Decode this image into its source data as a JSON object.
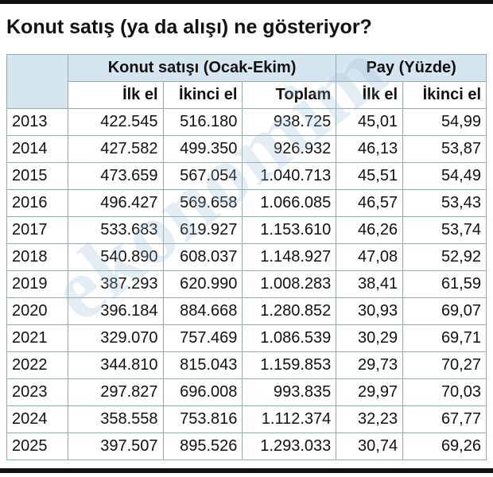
{
  "header": {
    "title": "Konut satış (ya da alışı) ne gösteriyor?"
  },
  "table": {
    "group_headers": [
      "Konut satışı (Ocak-Ekim)",
      "Pay (Yüzde)"
    ],
    "columns": [
      "İlk el",
      "İkinci el",
      "Toplam",
      "İlk el",
      "İkinci el"
    ],
    "rows": [
      [
        "2013",
        "422.545",
        "516.180",
        "938.725",
        "45,01",
        "54,99"
      ],
      [
        "2014",
        "427.582",
        "499.350",
        "926.932",
        "46,13",
        "53,87"
      ],
      [
        "2015",
        "473.659",
        "567.054",
        "1.040.713",
        "45,51",
        "54,49"
      ],
      [
        "2016",
        "496.427",
        "569.658",
        "1.066.085",
        "46,57",
        "53,43"
      ],
      [
        "2017",
        "533.683",
        "619.927",
        "1.153.610",
        "46,26",
        "53,74"
      ],
      [
        "2018",
        "540.890",
        "608.037",
        "1.148.927",
        "47,08",
        "52,92"
      ],
      [
        "2019",
        "387.293",
        "620.990",
        "1.008.283",
        "38,41",
        "61,59"
      ],
      [
        "2020",
        "396.184",
        "884.668",
        "1.280.852",
        "30,93",
        "69,07"
      ],
      [
        "2021",
        "329.070",
        "757.469",
        "1.086.539",
        "30,29",
        "69,71"
      ],
      [
        "2022",
        "344.810",
        "815.043",
        "1.159.853",
        "29,73",
        "70,27"
      ],
      [
        "2023",
        "297.827",
        "696.008",
        "993.835",
        "29,97",
        "70,03"
      ],
      [
        "2024",
        "358.558",
        "753.816",
        "1.112.374",
        "32,23",
        "67,77"
      ],
      [
        "2025",
        "397.507",
        "895.526",
        "1.293.033",
        "30,74",
        "69,26"
      ]
    ]
  },
  "watermark": "ekonomim"
}
